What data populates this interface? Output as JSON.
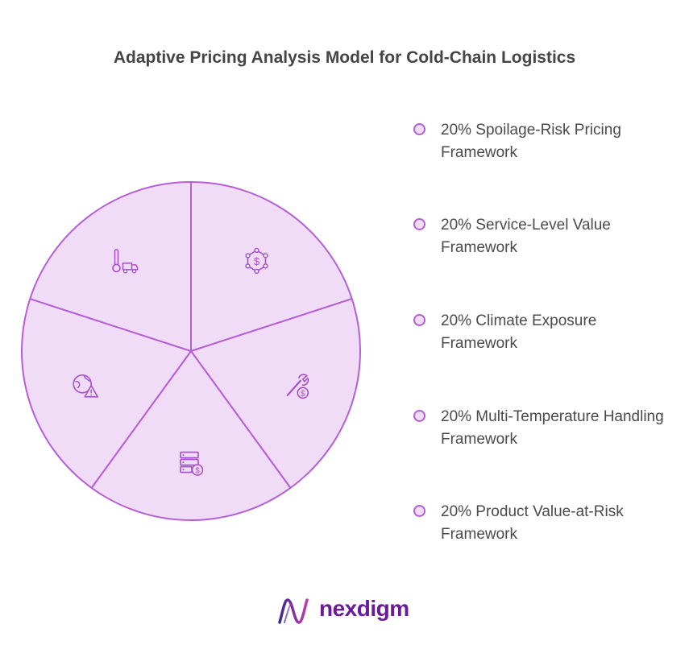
{
  "title": "Adaptive Pricing Analysis Model for Cold-Chain Logistics",
  "colors": {
    "slice_fill": "#f0dcf7",
    "slice_stroke": "#b45fd6",
    "icon": "#a74fcc",
    "brand": "#6a1b9a"
  },
  "chart_data": {
    "type": "pie",
    "slices": [
      {
        "label": "20% Spoilage-Risk Pricing Framework",
        "value": 20,
        "icon": "dollar-hexagon-network-icon"
      },
      {
        "label": "20% Service-Level Value Framework",
        "value": 20,
        "icon": "wrench-dollar-icon"
      },
      {
        "label": "20% Climate Exposure Framework",
        "value": 20,
        "icon": "server-dollar-icon"
      },
      {
        "label": "20% Multi-Temperature Handling Framework",
        "value": 20,
        "icon": "globe-warning-icon"
      },
      {
        "label": "20% Product Value-at-Risk Framework",
        "value": 20,
        "icon": "thermometer-truck-icon"
      }
    ]
  },
  "brand": {
    "name": "nexdigm"
  }
}
